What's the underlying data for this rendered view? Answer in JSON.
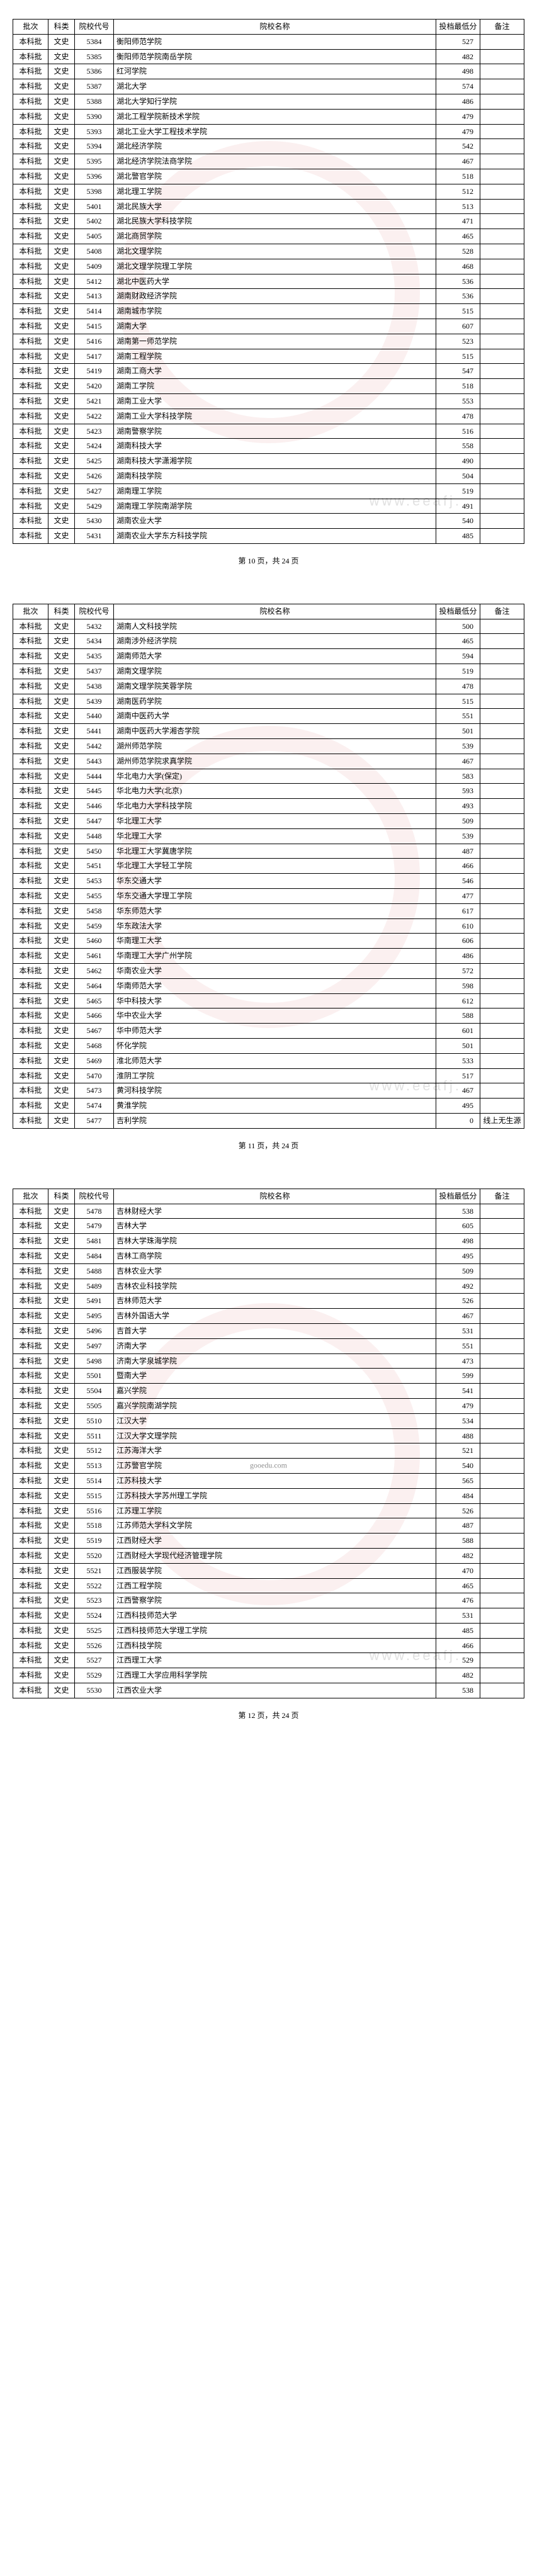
{
  "headers": {
    "batch": "批次",
    "subject": "科类",
    "code": "院校代号",
    "name": "院校名称",
    "score": "投档最低分",
    "note": "备注"
  },
  "batch_label": "本科批",
  "subject_label": "文史",
  "page_footer_template": "第 {n} 页，共 24 页",
  "watermark_text": "www.eeafj.",
  "watermark_small": "gooedu.com",
  "colors": {
    "border": "#000000",
    "text": "#000000",
    "watermark_ring": "rgba(200,60,60,.08)"
  },
  "pages": [
    {
      "number": 10,
      "rows": [
        {
          "code": "5384",
          "name": "衡阳师范学院",
          "score": "527"
        },
        {
          "code": "5385",
          "name": "衡阳师范学院南岳学院",
          "score": "482"
        },
        {
          "code": "5386",
          "name": "红河学院",
          "score": "498"
        },
        {
          "code": "5387",
          "name": "湖北大学",
          "score": "574"
        },
        {
          "code": "5388",
          "name": "湖北大学知行学院",
          "score": "486"
        },
        {
          "code": "5390",
          "name": "湖北工程学院新技术学院",
          "score": "479"
        },
        {
          "code": "5393",
          "name": "湖北工业大学工程技术学院",
          "score": "479"
        },
        {
          "code": "5394",
          "name": "湖北经济学院",
          "score": "542"
        },
        {
          "code": "5395",
          "name": "湖北经济学院法商学院",
          "score": "467"
        },
        {
          "code": "5396",
          "name": "湖北警官学院",
          "score": "518"
        },
        {
          "code": "5398",
          "name": "湖北理工学院",
          "score": "512"
        },
        {
          "code": "5401",
          "name": "湖北民族大学",
          "score": "513"
        },
        {
          "code": "5402",
          "name": "湖北民族大学科技学院",
          "score": "471"
        },
        {
          "code": "5405",
          "name": "湖北商贸学院",
          "score": "465"
        },
        {
          "code": "5408",
          "name": "湖北文理学院",
          "score": "528"
        },
        {
          "code": "5409",
          "name": "湖北文理学院理工学院",
          "score": "468"
        },
        {
          "code": "5412",
          "name": "湖北中医药大学",
          "score": "536"
        },
        {
          "code": "5413",
          "name": "湖南财政经济学院",
          "score": "536"
        },
        {
          "code": "5414",
          "name": "湖南城市学院",
          "score": "515"
        },
        {
          "code": "5415",
          "name": "湖南大学",
          "score": "607"
        },
        {
          "code": "5416",
          "name": "湖南第一师范学院",
          "score": "523"
        },
        {
          "code": "5417",
          "name": "湖南工程学院",
          "score": "515"
        },
        {
          "code": "5419",
          "name": "湖南工商大学",
          "score": "547"
        },
        {
          "code": "5420",
          "name": "湖南工学院",
          "score": "518"
        },
        {
          "code": "5421",
          "name": "湖南工业大学",
          "score": "553"
        },
        {
          "code": "5422",
          "name": "湖南工业大学科技学院",
          "score": "478"
        },
        {
          "code": "5423",
          "name": "湖南警察学院",
          "score": "516"
        },
        {
          "code": "5424",
          "name": "湖南科技大学",
          "score": "558"
        },
        {
          "code": "5425",
          "name": "湖南科技大学潇湘学院",
          "score": "490"
        },
        {
          "code": "5426",
          "name": "湖南科技学院",
          "score": "504"
        },
        {
          "code": "5427",
          "name": "湖南理工学院",
          "score": "519"
        },
        {
          "code": "5429",
          "name": "湖南理工学院南湖学院",
          "score": "491"
        },
        {
          "code": "5430",
          "name": "湖南农业大学",
          "score": "540"
        },
        {
          "code": "5431",
          "name": "湖南农业大学东方科技学院",
          "score": "485"
        }
      ]
    },
    {
      "number": 11,
      "rows": [
        {
          "code": "5432",
          "name": "湖南人文科技学院",
          "score": "500"
        },
        {
          "code": "5434",
          "name": "湖南涉外经济学院",
          "score": "465"
        },
        {
          "code": "5435",
          "name": "湖南师范大学",
          "score": "594"
        },
        {
          "code": "5437",
          "name": "湖南文理学院",
          "score": "519"
        },
        {
          "code": "5438",
          "name": "湖南文理学院芙蓉学院",
          "score": "478"
        },
        {
          "code": "5439",
          "name": "湖南医药学院",
          "score": "515"
        },
        {
          "code": "5440",
          "name": "湖南中医药大学",
          "score": "551"
        },
        {
          "code": "5441",
          "name": "湖南中医药大学湘杏学院",
          "score": "501"
        },
        {
          "code": "5442",
          "name": "湖州师范学院",
          "score": "539"
        },
        {
          "code": "5443",
          "name": "湖州师范学院求真学院",
          "score": "467"
        },
        {
          "code": "5444",
          "name": "华北电力大学(保定)",
          "score": "583"
        },
        {
          "code": "5445",
          "name": "华北电力大学(北京)",
          "score": "593"
        },
        {
          "code": "5446",
          "name": "华北电力大学科技学院",
          "score": "493"
        },
        {
          "code": "5447",
          "name": "华北理工大学",
          "score": "509"
        },
        {
          "code": "5448",
          "name": "华北理工大学",
          "score": "539"
        },
        {
          "code": "5450",
          "name": "华北理工大学冀唐学院",
          "score": "487"
        },
        {
          "code": "5451",
          "name": "华北理工大学轻工学院",
          "score": "466"
        },
        {
          "code": "5453",
          "name": "华东交通大学",
          "score": "546"
        },
        {
          "code": "5455",
          "name": "华东交通大学理工学院",
          "score": "477"
        },
        {
          "code": "5458",
          "name": "华东师范大学",
          "score": "617"
        },
        {
          "code": "5459",
          "name": "华东政法大学",
          "score": "610"
        },
        {
          "code": "5460",
          "name": "华南理工大学",
          "score": "606"
        },
        {
          "code": "5461",
          "name": "华南理工大学广州学院",
          "score": "486"
        },
        {
          "code": "5462",
          "name": "华南农业大学",
          "score": "572"
        },
        {
          "code": "5464",
          "name": "华南师范大学",
          "score": "598"
        },
        {
          "code": "5465",
          "name": "华中科技大学",
          "score": "612"
        },
        {
          "code": "5466",
          "name": "华中农业大学",
          "score": "588"
        },
        {
          "code": "5467",
          "name": "华中师范大学",
          "score": "601"
        },
        {
          "code": "5468",
          "name": "怀化学院",
          "score": "501"
        },
        {
          "code": "5469",
          "name": "淮北师范大学",
          "score": "533"
        },
        {
          "code": "5470",
          "name": "淮阴工学院",
          "score": "517"
        },
        {
          "code": "5473",
          "name": "黄河科技学院",
          "score": "467"
        },
        {
          "code": "5474",
          "name": "黄淮学院",
          "score": "495"
        },
        {
          "code": "5477",
          "name": "吉利学院",
          "score": "0",
          "note": "线上无生源"
        }
      ]
    },
    {
      "number": 12,
      "rows": [
        {
          "code": "5478",
          "name": "吉林财经大学",
          "score": "538"
        },
        {
          "code": "5479",
          "name": "吉林大学",
          "score": "605"
        },
        {
          "code": "5481",
          "name": "吉林大学珠海学院",
          "score": "498"
        },
        {
          "code": "5484",
          "name": "吉林工商学院",
          "score": "495"
        },
        {
          "code": "5488",
          "name": "吉林农业大学",
          "score": "509"
        },
        {
          "code": "5489",
          "name": "吉林农业科技学院",
          "score": "492"
        },
        {
          "code": "5491",
          "name": "吉林师范大学",
          "score": "526"
        },
        {
          "code": "5495",
          "name": "吉林外国语大学",
          "score": "467"
        },
        {
          "code": "5496",
          "name": "吉首大学",
          "score": "531"
        },
        {
          "code": "5497",
          "name": "济南大学",
          "score": "551"
        },
        {
          "code": "5498",
          "name": "济南大学泉城学院",
          "score": "473"
        },
        {
          "code": "5501",
          "name": "暨南大学",
          "score": "599"
        },
        {
          "code": "5504",
          "name": "嘉兴学院",
          "score": "541"
        },
        {
          "code": "5505",
          "name": "嘉兴学院南湖学院",
          "score": "479"
        },
        {
          "code": "5510",
          "name": "江汉大学",
          "score": "534"
        },
        {
          "code": "5511",
          "name": "江汉大学文理学院",
          "score": "488"
        },
        {
          "code": "5512",
          "name": "江苏海洋大学",
          "score": "521"
        },
        {
          "code": "5513",
          "name": "江苏警官学院",
          "score": "540"
        },
        {
          "code": "5514",
          "name": "江苏科技大学",
          "score": "565"
        },
        {
          "code": "5515",
          "name": "江苏科技大学苏州理工学院",
          "score": "484"
        },
        {
          "code": "5516",
          "name": "江苏理工学院",
          "score": "526"
        },
        {
          "code": "5518",
          "name": "江苏师范大学科文学院",
          "score": "487"
        },
        {
          "code": "5519",
          "name": "江西财经大学",
          "score": "588"
        },
        {
          "code": "5520",
          "name": "江西财经大学现代经济管理学院",
          "score": "482"
        },
        {
          "code": "5521",
          "name": "江西服装学院",
          "score": "470"
        },
        {
          "code": "5522",
          "name": "江西工程学院",
          "score": "465"
        },
        {
          "code": "5523",
          "name": "江西警察学院",
          "score": "476"
        },
        {
          "code": "5524",
          "name": "江西科技师范大学",
          "score": "531"
        },
        {
          "code": "5525",
          "name": "江西科技师范大学理工学院",
          "score": "485"
        },
        {
          "code": "5526",
          "name": "江西科技学院",
          "score": "466"
        },
        {
          "code": "5527",
          "name": "江西理工大学",
          "score": "529"
        },
        {
          "code": "5529",
          "name": "江西理工大学应用科学学院",
          "score": "482"
        },
        {
          "code": "5530",
          "name": "江西农业大学",
          "score": "538"
        }
      ],
      "small_wm": true
    }
  ]
}
